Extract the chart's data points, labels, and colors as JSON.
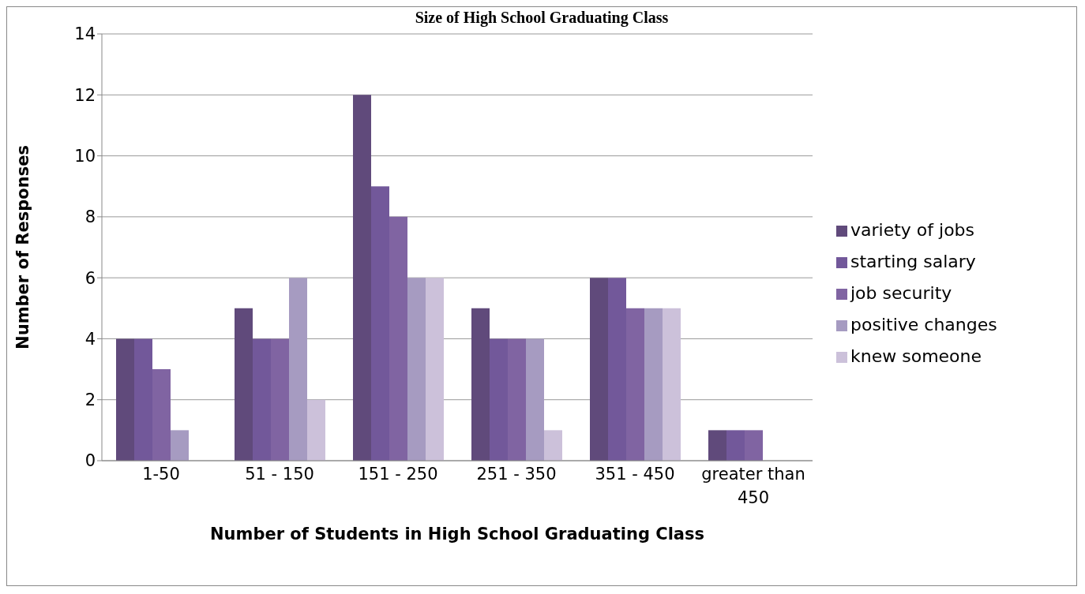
{
  "chart_data": {
    "type": "bar",
    "title": "Size of High School Graduating Class",
    "xlabel": "Number of Students in High School Graduating Class",
    "ylabel": "Number of Responses",
    "categories": [
      "1-50",
      "51 - 150",
      "151 - 250",
      "251 - 350",
      "351 - 450",
      "greater than 450"
    ],
    "series": [
      {
        "name": "variety of jobs",
        "color": "#604a7b",
        "values": [
          4,
          5,
          12,
          5,
          6,
          1
        ]
      },
      {
        "name": "starting salary",
        "color": "#72589a",
        "values": [
          4,
          4,
          9,
          4,
          6,
          1
        ]
      },
      {
        "name": "job security",
        "color": "#8064a2",
        "values": [
          3,
          4,
          8,
          4,
          5,
          1
        ]
      },
      {
        "name": "positive changes",
        "color": "#a69bc1",
        "values": [
          1,
          6,
          6,
          4,
          5,
          0
        ]
      },
      {
        "name": "knew someone",
        "color": "#ccc1da",
        "values": [
          0,
          2,
          6,
          1,
          5,
          0
        ]
      }
    ],
    "ylim": [
      0,
      14
    ],
    "yticks": [
      0,
      2,
      4,
      6,
      8,
      10,
      12,
      14
    ],
    "grid": "y",
    "legend": "right"
  }
}
